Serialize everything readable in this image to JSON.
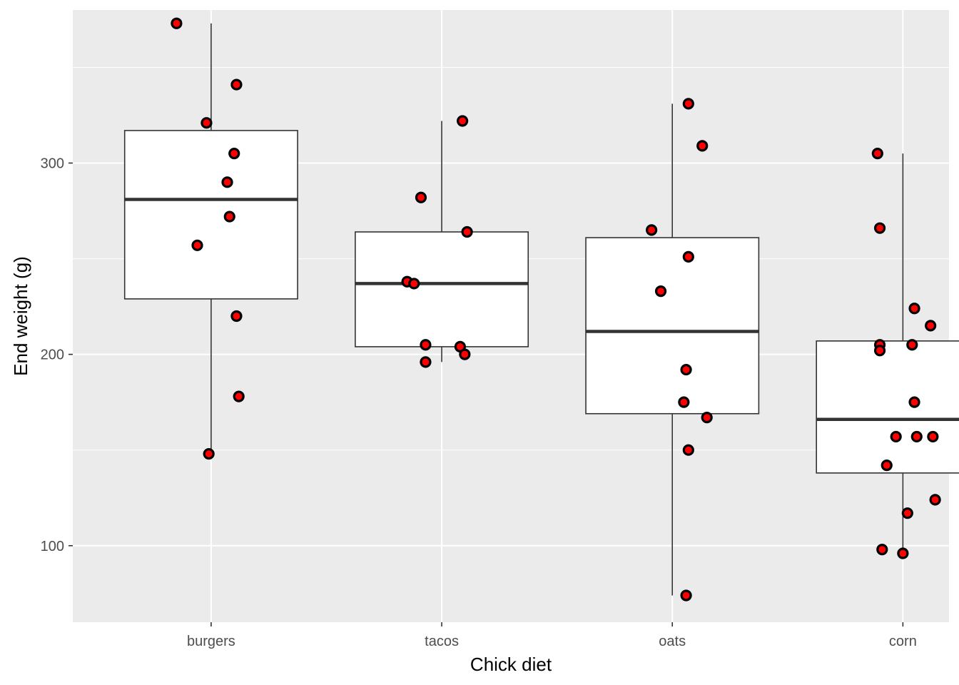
{
  "chart_data": {
    "type": "boxplot",
    "title": "",
    "xlabel": "Chick diet",
    "ylabel": "End weight (g)",
    "categories": [
      "burgers",
      "tacos",
      "oats",
      "corn"
    ],
    "ylim": [
      60,
      380
    ],
    "yticks": [
      100,
      200,
      300
    ],
    "grid": true,
    "legend": "none",
    "colors": {
      "panel": "#ebebeb",
      "grid": "#ffffff",
      "box_fill": "#ffffff",
      "box_line": "#333333",
      "point_fill": "#ff0000",
      "point_stroke": "#000000"
    },
    "boxes": [
      {
        "category": "burgers",
        "lower_whisker": 148,
        "q1": 229,
        "median": 281,
        "q3": 317,
        "upper_whisker": 373
      },
      {
        "category": "tacos",
        "lower_whisker": 196,
        "q1": 204,
        "median": 237,
        "q3": 264,
        "upper_whisker": 322
      },
      {
        "category": "oats",
        "lower_whisker": 74,
        "q1": 169,
        "median": 212,
        "q3": 261,
        "upper_whisker": 331
      },
      {
        "category": "corn",
        "lower_whisker": 96,
        "q1": 138,
        "median": 166,
        "q3": 207,
        "upper_whisker": 305
      }
    ],
    "points": [
      {
        "category": "burgers",
        "y": 373,
        "jitter": -0.15
      },
      {
        "category": "burgers",
        "y": 341,
        "jitter": 0.11
      },
      {
        "category": "burgers",
        "y": 321,
        "jitter": -0.02
      },
      {
        "category": "burgers",
        "y": 305,
        "jitter": 0.1
      },
      {
        "category": "burgers",
        "y": 290,
        "jitter": 0.07
      },
      {
        "category": "burgers",
        "y": 272,
        "jitter": 0.08
      },
      {
        "category": "burgers",
        "y": 257,
        "jitter": -0.06
      },
      {
        "category": "burgers",
        "y": 220,
        "jitter": 0.11
      },
      {
        "category": "burgers",
        "y": 178,
        "jitter": 0.12
      },
      {
        "category": "burgers",
        "y": 148,
        "jitter": -0.01
      },
      {
        "category": "tacos",
        "y": 322,
        "jitter": 0.09
      },
      {
        "category": "tacos",
        "y": 282,
        "jitter": -0.09
      },
      {
        "category": "tacos",
        "y": 264,
        "jitter": 0.11
      },
      {
        "category": "tacos",
        "y": 238,
        "jitter": -0.15
      },
      {
        "category": "tacos",
        "y": 237,
        "jitter": -0.12
      },
      {
        "category": "tacos",
        "y": 205,
        "jitter": -0.07
      },
      {
        "category": "tacos",
        "y": 204,
        "jitter": 0.08
      },
      {
        "category": "tacos",
        "y": 200,
        "jitter": 0.1
      },
      {
        "category": "tacos",
        "y": 196,
        "jitter": -0.07
      },
      {
        "category": "oats",
        "y": 331,
        "jitter": 0.07
      },
      {
        "category": "oats",
        "y": 309,
        "jitter": 0.13
      },
      {
        "category": "oats",
        "y": 265,
        "jitter": -0.09
      },
      {
        "category": "oats",
        "y": 251,
        "jitter": 0.07
      },
      {
        "category": "oats",
        "y": 233,
        "jitter": -0.05
      },
      {
        "category": "oats",
        "y": 192,
        "jitter": 0.06
      },
      {
        "category": "oats",
        "y": 175,
        "jitter": 0.05
      },
      {
        "category": "oats",
        "y": 167,
        "jitter": 0.15
      },
      {
        "category": "oats",
        "y": 150,
        "jitter": 0.07
      },
      {
        "category": "oats",
        "y": 74,
        "jitter": 0.06
      },
      {
        "category": "corn",
        "y": 305,
        "jitter": -0.11
      },
      {
        "category": "corn",
        "y": 266,
        "jitter": -0.1
      },
      {
        "category": "corn",
        "y": 224,
        "jitter": 0.05
      },
      {
        "category": "corn",
        "y": 215,
        "jitter": 0.12
      },
      {
        "category": "corn",
        "y": 205,
        "jitter": 0.04
      },
      {
        "category": "corn",
        "y": 205,
        "jitter": -0.1
      },
      {
        "category": "corn",
        "y": 202,
        "jitter": -0.1
      },
      {
        "category": "corn",
        "y": 175,
        "jitter": 0.05
      },
      {
        "category": "corn",
        "y": 157,
        "jitter": -0.03
      },
      {
        "category": "corn",
        "y": 157,
        "jitter": 0.06
      },
      {
        "category": "corn",
        "y": 157,
        "jitter": 0.13
      },
      {
        "category": "corn",
        "y": 142,
        "jitter": -0.07
      },
      {
        "category": "corn",
        "y": 124,
        "jitter": 0.14
      },
      {
        "category": "corn",
        "y": 117,
        "jitter": 0.02
      },
      {
        "category": "corn",
        "y": 98,
        "jitter": -0.09
      },
      {
        "category": "corn",
        "y": 96,
        "jitter": 0.0
      }
    ]
  }
}
